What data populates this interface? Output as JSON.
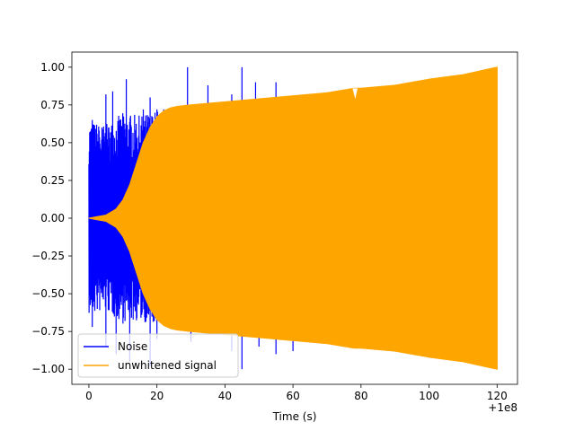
{
  "chart_data": {
    "type": "line",
    "title": "",
    "xlabel": "Time (s)",
    "ylabel": "",
    "x_offset_label": "+1e8",
    "xlim": [
      -5,
      126
    ],
    "ylim": [
      -1.1,
      1.1
    ],
    "x_ticks": [
      0,
      20,
      40,
      60,
      80,
      100,
      120
    ],
    "x_tick_labels": [
      "0",
      "20",
      "40",
      "60",
      "80",
      "100",
      "120"
    ],
    "y_ticks": [
      1.0,
      0.75,
      0.5,
      0.25,
      0.0,
      -0.25,
      -0.5,
      -0.75,
      -1.0
    ],
    "y_tick_labels": [
      "1.00",
      "0.75",
      "0.50",
      "0.25",
      "0.00",
      "−0.25",
      "−0.50",
      "−0.75",
      "−1.00"
    ],
    "grid": false,
    "legend_position": "lower-left",
    "series": [
      {
        "name": "Noise",
        "color": "#0000ff",
        "x_range": [
          0,
          60
        ],
        "envelope_upper": [
          [
            0,
            0.65
          ],
          [
            5,
            0.62
          ],
          [
            10,
            0.7
          ],
          [
            15,
            0.68
          ],
          [
            20,
            0.72
          ],
          [
            25,
            0.7
          ],
          [
            30,
            0.68
          ],
          [
            40,
            0.62
          ],
          [
            50,
            0.6
          ],
          [
            60,
            0.58
          ]
        ],
        "peak_spikes": [
          [
            1,
            0.65
          ],
          [
            3,
            0.58
          ],
          [
            5,
            0.82
          ],
          [
            7,
            0.84
          ],
          [
            11,
            0.92
          ],
          [
            16,
            0.72
          ],
          [
            18,
            0.8
          ],
          [
            20,
            0.72
          ],
          [
            22,
            0.72
          ],
          [
            29,
            1.0
          ],
          [
            35,
            0.88
          ],
          [
            42,
            0.82
          ],
          [
            45,
            1.0
          ],
          [
            49,
            0.9
          ],
          [
            55,
            0.9
          ],
          [
            60,
            0.72
          ]
        ],
        "trough_spikes": [
          [
            1,
            -0.72
          ],
          [
            5,
            -0.85
          ],
          [
            8,
            -0.9
          ],
          [
            12,
            -0.95
          ],
          [
            18,
            -0.98
          ],
          [
            20,
            -0.8
          ],
          [
            30,
            -0.82
          ],
          [
            42,
            -0.88
          ],
          [
            45,
            -1.0
          ],
          [
            50,
            -0.85
          ],
          [
            55,
            -0.9
          ],
          [
            60,
            -0.88
          ]
        ]
      },
      {
        "name": "unwhitened signal",
        "color": "#ffa500",
        "x_range": [
          0,
          120
        ],
        "envelope_upper": [
          [
            0,
            0.0
          ],
          [
            5,
            0.02
          ],
          [
            8,
            0.06
          ],
          [
            10,
            0.12
          ],
          [
            12,
            0.22
          ],
          [
            14,
            0.36
          ],
          [
            16,
            0.5
          ],
          [
            18,
            0.6
          ],
          [
            20,
            0.67
          ],
          [
            22,
            0.71
          ],
          [
            24,
            0.73
          ],
          [
            26,
            0.74
          ],
          [
            30,
            0.75
          ],
          [
            40,
            0.77
          ],
          [
            50,
            0.79
          ],
          [
            60,
            0.81
          ],
          [
            70,
            0.83
          ],
          [
            78,
            0.86
          ],
          [
            80,
            0.86
          ],
          [
            90,
            0.88
          ],
          [
            100,
            0.92
          ],
          [
            110,
            0.95
          ],
          [
            120,
            1.0
          ]
        ]
      }
    ]
  }
}
